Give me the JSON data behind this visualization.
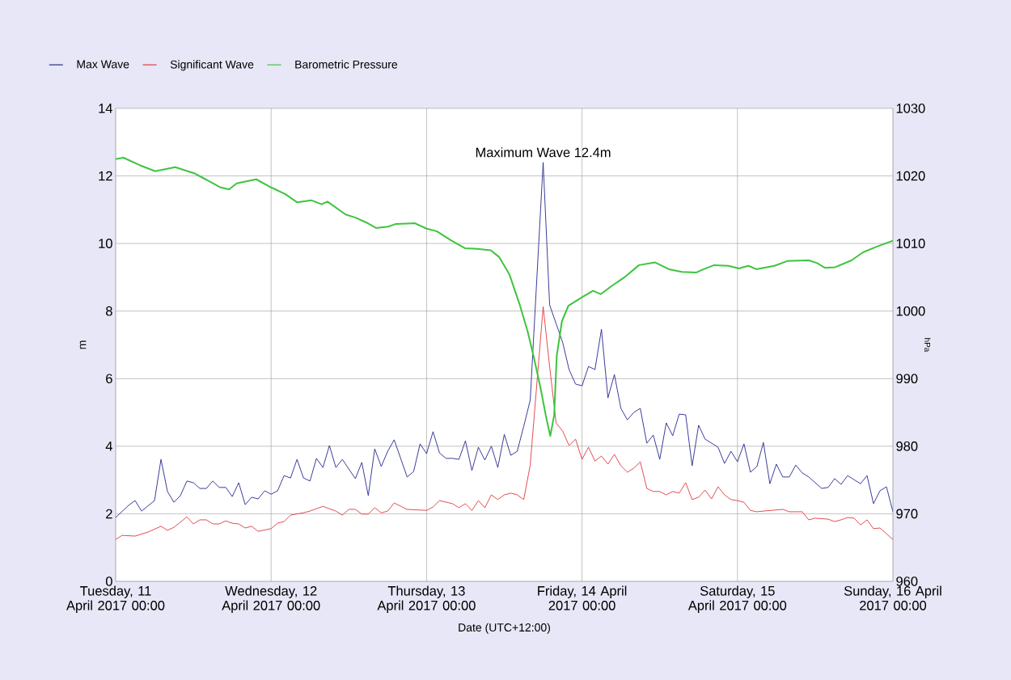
{
  "chart_data": {
    "type": "line",
    "xlabel": "Date (UTC+12:00)",
    "ylabel": "m",
    "y2label": "hPa",
    "xlim": [
      "2017-04-11T00:00",
      "2017-04-16T00:00"
    ],
    "xticks": [
      {
        "value": "2017-04-11T00:00",
        "label": "Tuesday, 11 April 2017 00:00"
      },
      {
        "value": "2017-04-12T00:00",
        "label": "Wednesday, 12 April 2017 00:00"
      },
      {
        "value": "2017-04-13T00:00",
        "label": "Thursday, 13 April 2017 00:00"
      },
      {
        "value": "2017-04-14T00:00",
        "label": "Friday, 14 April 2017 00:00"
      },
      {
        "value": "2017-04-15T00:00",
        "label": "Saturday, 15 April 2017 00:00"
      },
      {
        "value": "2017-04-16T00:00",
        "label": "Sunday, 16 April 2017 00:00"
      }
    ],
    "ylim": [
      0,
      14
    ],
    "yticks": [
      0,
      2,
      4,
      6,
      8,
      10,
      12,
      14
    ],
    "y2lim": [
      960,
      1030
    ],
    "y2ticks": [
      960,
      970,
      980,
      990,
      1000,
      1010,
      1020,
      1030
    ],
    "grid": true,
    "legend": "top left",
    "annotations": [
      {
        "text": "Maximum Wave 12.4m",
        "x": "2017-04-13T18:00",
        "y": 12.4
      }
    ],
    "series": [
      {
        "name": "Max Wave",
        "color": "#25288f",
        "x": [
          "2017-04-11T00:00",
          "2017-04-11T02:00",
          "2017-04-11T03:00",
          "2017-04-11T04:00",
          "2017-04-11T06:00",
          "2017-04-11T07:00",
          "2017-04-11T08:00",
          "2017-04-11T09:00",
          "2017-04-11T10:00",
          "2017-04-11T11:00",
          "2017-04-11T12:00",
          "2017-04-11T13:00",
          "2017-04-11T14:00",
          "2017-04-11T15:00",
          "2017-04-11T16:00",
          "2017-04-11T17:00",
          "2017-04-11T18:00",
          "2017-04-11T19:00",
          "2017-04-11T20:00",
          "2017-04-11T21:00",
          "2017-04-11T22:00",
          "2017-04-11T23:00",
          "2017-04-12T00:00",
          "2017-04-12T01:00",
          "2017-04-12T02:00",
          "2017-04-12T03:00",
          "2017-04-12T04:00",
          "2017-04-12T05:00",
          "2017-04-12T06:00",
          "2017-04-12T07:00",
          "2017-04-12T08:00",
          "2017-04-12T09:00",
          "2017-04-12T10:00",
          "2017-04-12T11:00",
          "2017-04-12T13:00",
          "2017-04-12T14:00",
          "2017-04-12T15:00",
          "2017-04-12T16:00",
          "2017-04-12T17:00",
          "2017-04-12T18:00",
          "2017-04-12T19:00",
          "2017-04-12T21:00",
          "2017-04-12T22:00",
          "2017-04-12T23:00",
          "2017-04-13T00:00",
          "2017-04-13T01:00",
          "2017-04-13T02:00",
          "2017-04-13T03:00",
          "2017-04-13T04:00",
          "2017-04-13T05:00",
          "2017-04-13T06:00",
          "2017-04-13T07:00",
          "2017-04-13T08:00",
          "2017-04-13T09:00",
          "2017-04-13T10:00",
          "2017-04-13T11:00",
          "2017-04-13T12:00",
          "2017-04-13T13:00",
          "2017-04-13T14:00",
          "2017-04-13T15:00",
          "2017-04-13T16:00",
          "2017-04-13T18:00",
          "2017-04-13T19:00",
          "2017-04-13T20:00",
          "2017-04-13T21:00",
          "2017-04-13T22:00",
          "2017-04-13T23:00",
          "2017-04-14T00:00",
          "2017-04-14T01:00",
          "2017-04-14T02:00",
          "2017-04-14T03:00",
          "2017-04-14T04:00",
          "2017-04-14T05:00",
          "2017-04-14T06:00",
          "2017-04-14T07:00",
          "2017-04-14T08:00",
          "2017-04-14T09:00",
          "2017-04-14T10:00",
          "2017-04-14T11:00",
          "2017-04-14T12:00",
          "2017-04-14T13:00",
          "2017-04-14T14:00",
          "2017-04-14T15:00",
          "2017-04-14T16:00",
          "2017-04-14T17:00",
          "2017-04-14T18:00",
          "2017-04-14T19:00",
          "2017-04-14T21:00",
          "2017-04-14T22:00",
          "2017-04-14T23:00",
          "2017-04-15T00:00",
          "2017-04-15T01:00",
          "2017-04-15T02:00",
          "2017-04-15T03:00",
          "2017-04-15T04:00",
          "2017-04-15T05:00",
          "2017-04-15T06:00",
          "2017-04-15T07:00",
          "2017-04-15T08:00",
          "2017-04-15T09:00",
          "2017-04-15T10:00",
          "2017-04-15T11:00",
          "2017-04-15T13:00",
          "2017-04-15T14:00",
          "2017-04-15T15:00",
          "2017-04-15T16:00",
          "2017-04-15T17:00",
          "2017-04-15T18:00",
          "2017-04-15T19:00",
          "2017-04-15T20:00",
          "2017-04-15T21:00",
          "2017-04-15T22:00",
          "2017-04-15T23:00",
          "2017-04-16T00:00"
        ],
        "values": [
          1.89,
          2.25,
          2.39,
          2.08,
          2.39,
          3.61,
          2.66,
          2.34,
          2.54,
          2.97,
          2.92,
          2.75,
          2.75,
          2.97,
          2.78,
          2.78,
          2.51,
          2.92,
          2.27,
          2.49,
          2.44,
          2.68,
          2.58,
          2.68,
          3.13,
          3.06,
          3.61,
          3.06,
          2.97,
          3.64,
          3.37,
          4.02,
          3.37,
          3.61,
          3.04,
          3.52,
          2.54,
          3.92,
          3.4,
          3.85,
          4.19,
          3.09,
          3.25,
          4.07,
          3.78,
          4.43,
          3.8,
          3.64,
          3.64,
          3.61,
          4.16,
          3.28,
          3.97,
          3.59,
          4.0,
          3.37,
          4.35,
          3.73,
          3.85,
          4.59,
          5.36,
          12.4,
          8.18,
          7.63,
          7.08,
          6.27,
          5.84,
          5.79,
          6.36,
          6.27,
          7.46,
          5.43,
          6.12,
          5.12,
          4.78,
          5.0,
          5.12,
          4.09,
          4.33,
          3.61,
          4.69,
          4.31,
          4.95,
          4.93,
          3.42,
          4.62,
          4.21,
          3.97,
          3.49,
          3.85,
          3.54,
          4.07,
          3.23,
          3.4,
          4.11,
          2.89,
          3.47,
          3.09,
          3.09,
          3.44,
          3.21,
          3.09,
          2.75,
          2.78,
          3.04,
          2.87,
          3.13,
          3.01,
          2.89,
          3.13,
          2.3,
          2.68,
          2.8,
          2.06
        ]
      },
      {
        "name": "Significant Wave",
        "color": "#e0393e",
        "x": [
          "2017-04-11T00:00",
          "2017-04-11T01:00",
          "2017-04-11T03:00",
          "2017-04-11T05:00",
          "2017-04-11T07:00",
          "2017-04-11T08:00",
          "2017-04-11T09:00",
          "2017-04-11T11:00",
          "2017-04-11T12:00",
          "2017-04-11T13:00",
          "2017-04-11T14:00",
          "2017-04-11T15:00",
          "2017-04-11T16:00",
          "2017-04-11T17:00",
          "2017-04-11T18:00",
          "2017-04-11T19:00",
          "2017-04-11T20:00",
          "2017-04-11T21:00",
          "2017-04-11T22:00",
          "2017-04-12T00:00",
          "2017-04-12T01:00",
          "2017-04-12T02:00",
          "2017-04-12T03:00",
          "2017-04-12T05:00",
          "2017-04-12T06:00",
          "2017-04-12T08:00",
          "2017-04-12T10:00",
          "2017-04-12T11:00",
          "2017-04-12T12:00",
          "2017-04-12T13:00",
          "2017-04-12T14:00",
          "2017-04-12T15:00",
          "2017-04-12T16:00",
          "2017-04-12T17:00",
          "2017-04-12T18:00",
          "2017-04-12T19:00",
          "2017-04-12T21:00",
          "2017-04-13T00:00",
          "2017-04-13T01:00",
          "2017-04-13T02:00",
          "2017-04-13T04:00",
          "2017-04-13T05:00",
          "2017-04-13T06:00",
          "2017-04-13T07:00",
          "2017-04-13T08:00",
          "2017-04-13T09:00",
          "2017-04-13T10:00",
          "2017-04-13T11:00",
          "2017-04-13T12:00",
          "2017-04-13T13:00",
          "2017-04-13T14:00",
          "2017-04-13T15:00",
          "2017-04-13T16:00",
          "2017-04-13T18:00",
          "2017-04-13T19:00",
          "2017-04-13T20:00",
          "2017-04-13T21:00",
          "2017-04-13T22:00",
          "2017-04-13T23:00",
          "2017-04-14T00:00",
          "2017-04-14T01:00",
          "2017-04-14T02:00",
          "2017-04-14T03:00",
          "2017-04-14T04:00",
          "2017-04-14T05:00",
          "2017-04-14T06:00",
          "2017-04-14T07:00",
          "2017-04-14T08:00",
          "2017-04-14T09:00",
          "2017-04-14T10:00",
          "2017-04-14T11:00",
          "2017-04-14T12:00",
          "2017-04-14T13:00",
          "2017-04-14T14:00",
          "2017-04-14T15:00",
          "2017-04-14T16:00",
          "2017-04-14T17:00",
          "2017-04-14T18:00",
          "2017-04-14T19:00",
          "2017-04-14T20:00",
          "2017-04-14T21:00",
          "2017-04-14T22:00",
          "2017-04-14T23:00",
          "2017-04-15T00:00",
          "2017-04-15T01:00",
          "2017-04-15T02:00",
          "2017-04-15T03:00",
          "2017-04-15T04:00",
          "2017-04-15T07:00",
          "2017-04-15T08:00",
          "2017-04-15T10:00",
          "2017-04-15T11:00",
          "2017-04-15T12:00",
          "2017-04-15T14:00",
          "2017-04-15T15:00",
          "2017-04-15T16:00",
          "2017-04-15T17:00",
          "2017-04-15T18:00",
          "2017-04-15T19:00",
          "2017-04-15T20:00",
          "2017-04-15T21:00",
          "2017-04-15T22:00",
          "2017-04-15T23:00",
          "2017-04-16T00:00"
        ],
        "values": [
          1.24,
          1.36,
          1.34,
          1.46,
          1.63,
          1.51,
          1.6,
          1.91,
          1.7,
          1.82,
          1.82,
          1.7,
          1.7,
          1.79,
          1.72,
          1.7,
          1.58,
          1.63,
          1.48,
          1.56,
          1.72,
          1.77,
          1.96,
          2.03,
          2.08,
          2.22,
          2.08,
          1.96,
          2.13,
          2.13,
          1.99,
          1.99,
          2.18,
          2.03,
          2.08,
          2.32,
          2.13,
          2.1,
          2.2,
          2.39,
          2.3,
          2.18,
          2.3,
          2.1,
          2.39,
          2.18,
          2.56,
          2.42,
          2.56,
          2.61,
          2.56,
          2.42,
          3.44,
          8.13,
          6.36,
          4.69,
          4.45,
          4.02,
          4.21,
          3.61,
          3.97,
          3.56,
          3.71,
          3.47,
          3.76,
          3.42,
          3.23,
          3.35,
          3.54,
          2.75,
          2.66,
          2.66,
          2.56,
          2.66,
          2.61,
          2.92,
          2.42,
          2.49,
          2.7,
          2.44,
          2.8,
          2.56,
          2.42,
          2.39,
          2.34,
          2.1,
          2.06,
          2.08,
          2.13,
          2.06,
          2.06,
          1.82,
          1.87,
          1.84,
          1.77,
          1.82,
          1.89,
          1.87,
          1.67,
          1.82,
          1.56,
          1.58,
          1.41,
          1.24
        ]
      },
      {
        "name": "Barometric Pressure",
        "color": "#3ec43e",
        "axis": "y2",
        "x": [
          "2017-04-11T00:00",
          "2017-04-11T01:12",
          "2017-04-11T03:42",
          "2017-04-11T06:06",
          "2017-04-11T09:12",
          "2017-04-11T12:06",
          "2017-04-11T13:18",
          "2017-04-11T16:12",
          "2017-04-11T17:30",
          "2017-04-11T18:42",
          "2017-04-11T21:42",
          "2017-04-12T00:00",
          "2017-04-12T02:12",
          "2017-04-12T04:00",
          "2017-04-12T06:12",
          "2017-04-12T07:48",
          "2017-04-12T08:42",
          "2017-04-12T11:30",
          "2017-04-12T13:06",
          "2017-04-12T14:42",
          "2017-04-12T16:12",
          "2017-04-12T18:06",
          "2017-04-12T19:18",
          "2017-04-12T22:12",
          "2017-04-13T00:00",
          "2017-04-13T01:36",
          "2017-04-13T03:42",
          "2017-04-13T05:54",
          "2017-04-13T07:48",
          "2017-04-13T09:54",
          "2017-04-13T11:12",
          "2017-04-13T12:48",
          "2017-04-13T14:24",
          "2017-04-13T15:36",
          "2017-04-13T16:36",
          "2017-04-13T17:36",
          "2017-04-13T18:24",
          "2017-04-13T19:06",
          "2017-04-13T19:42",
          "2017-04-13T20:06",
          "2017-04-13T20:54",
          "2017-04-13T21:54",
          "2017-04-14T00:06",
          "2017-04-14T01:42",
          "2017-04-14T02:54",
          "2017-04-14T04:42",
          "2017-04-14T06:42",
          "2017-04-14T08:48",
          "2017-04-14T11:18",
          "2017-04-14T13:24",
          "2017-04-14T15:24",
          "2017-04-14T17:36",
          "2017-04-14T18:48",
          "2017-04-14T20:24",
          "2017-04-14T22:36",
          "2017-04-15T00:12",
          "2017-04-15T01:42",
          "2017-04-15T02:54",
          "2017-04-15T05:42",
          "2017-04-15T07:42",
          "2017-04-15T11:00",
          "2017-04-15T12:18",
          "2017-04-15T13:30",
          "2017-04-15T15:06",
          "2017-04-15T17:36",
          "2017-04-15T19:24",
          "2017-04-15T21:24",
          "2017-04-16T00:00"
        ],
        "values": [
          1022.5,
          1022.7,
          1021.6,
          1020.7,
          1021.3,
          1020.4,
          1019.8,
          1018.3,
          1018,
          1018.9,
          1019.5,
          1018.3,
          1017.3,
          1016.1,
          1016.4,
          1015.8,
          1016.2,
          1014.3,
          1013.8,
          1013.1,
          1012.3,
          1012.5,
          1012.9,
          1013,
          1012.2,
          1011.8,
          1010.5,
          1009.3,
          1009.2,
          1009,
          1008,
          1005.4,
          1000.9,
          997,
          993,
          988.6,
          984.6,
          981.5,
          984.6,
          993.4,
          998.5,
          1000.8,
          1002.1,
          1003,
          1002.5,
          1003.8,
          1005.1,
          1006.8,
          1007.2,
          1006.2,
          1005.8,
          1005.7,
          1006.2,
          1006.8,
          1006.7,
          1006.3,
          1006.7,
          1006.2,
          1006.7,
          1007.4,
          1007.5,
          1007.1,
          1006.4,
          1006.5,
          1007.5,
          1008.7,
          1009.5,
          1010.4
        ]
      }
    ]
  }
}
